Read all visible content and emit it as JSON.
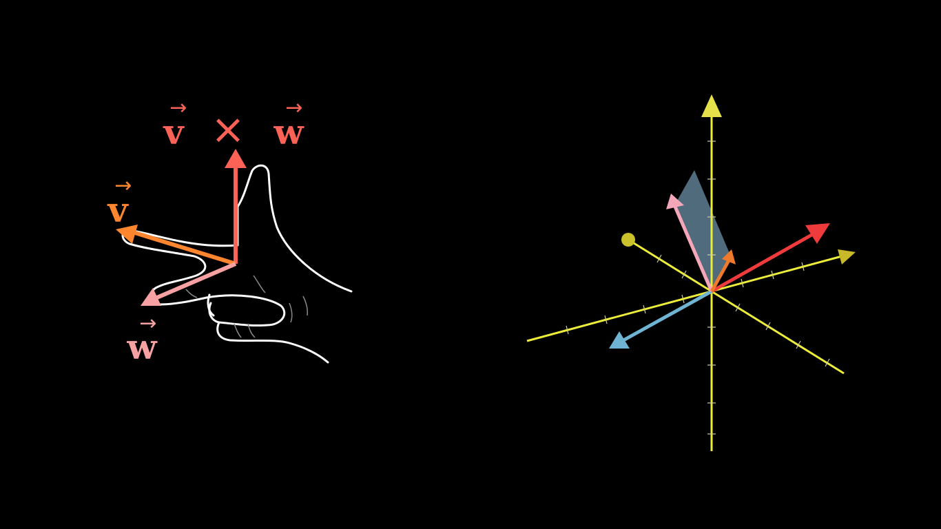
{
  "labels": {
    "v": "v",
    "w": "w",
    "cross": "×",
    "arrow": "→"
  },
  "colors": {
    "background": "#000000",
    "cross_product": "#fc6255",
    "v_vector": "#ff862f",
    "w_vector": "#f7a1a3",
    "hand_outline": "#ffffff",
    "axis": "#ecec3a",
    "red_vector": "#ef3b3b",
    "blue_vector": "#6fb4d2",
    "pink_vector": "#f4a7b9",
    "orange_vector": "#f07a2c",
    "plane": "#6a8fa6"
  },
  "diagram_3d": {
    "vectors": [
      {
        "name": "pink-vector",
        "color": "pink_vector"
      },
      {
        "name": "red-vector",
        "color": "red_vector"
      },
      {
        "name": "blue-vector",
        "color": "blue_vector"
      },
      {
        "name": "orange-vector",
        "color": "orange_vector"
      }
    ],
    "axes": [
      "vertical-axis",
      "x-axis",
      "depth-axis"
    ]
  }
}
